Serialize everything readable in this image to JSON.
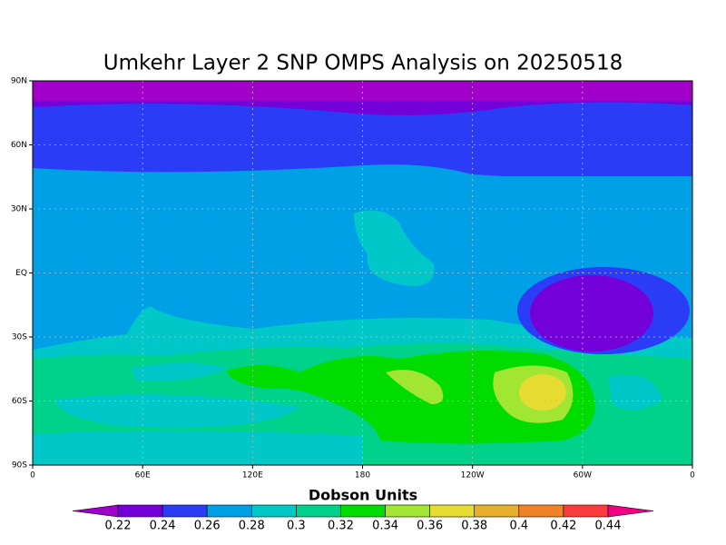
{
  "title": "Umkehr Layer 2 SNP OMPS Analysis on 20250518",
  "map": {
    "xlim": [
      0,
      360
    ],
    "ylim": [
      -90,
      90
    ],
    "xticks": [
      0,
      {
        "value": 60,
        "label": "60E"
      },
      {
        "value": 120,
        "label": "120E"
      },
      180,
      {
        "value": 240,
        "label": "120W"
      },
      {
        "value": 300,
        "label": "60W"
      },
      0
    ],
    "yticks": [
      {
        "value": 90,
        "label": "90N"
      },
      {
        "value": 60,
        "label": "60N"
      },
      {
        "value": 30,
        "label": "30N"
      },
      {
        "value": 0,
        "label": "EQ"
      },
      {
        "value": -30,
        "label": "30S"
      },
      {
        "value": -60,
        "label": "60S"
      },
      {
        "value": -90,
        "label": "90S"
      }
    ]
  },
  "colorbar": {
    "title": "Dobson Units",
    "levels": [
      0.22,
      0.24,
      0.26,
      0.28,
      0.3,
      0.32,
      0.34,
      0.36,
      0.38,
      0.4,
      0.42,
      0.44
    ],
    "colors": [
      "#a000c8",
      "#7300d8",
      "#2a3cf5",
      "#00a0e6",
      "#00c8c8",
      "#00d28c",
      "#00dc00",
      "#a0e632",
      "#e6dc32",
      "#e6af2d",
      "#f08228",
      "#fa3c3c",
      "#f00082"
    ]
  }
}
